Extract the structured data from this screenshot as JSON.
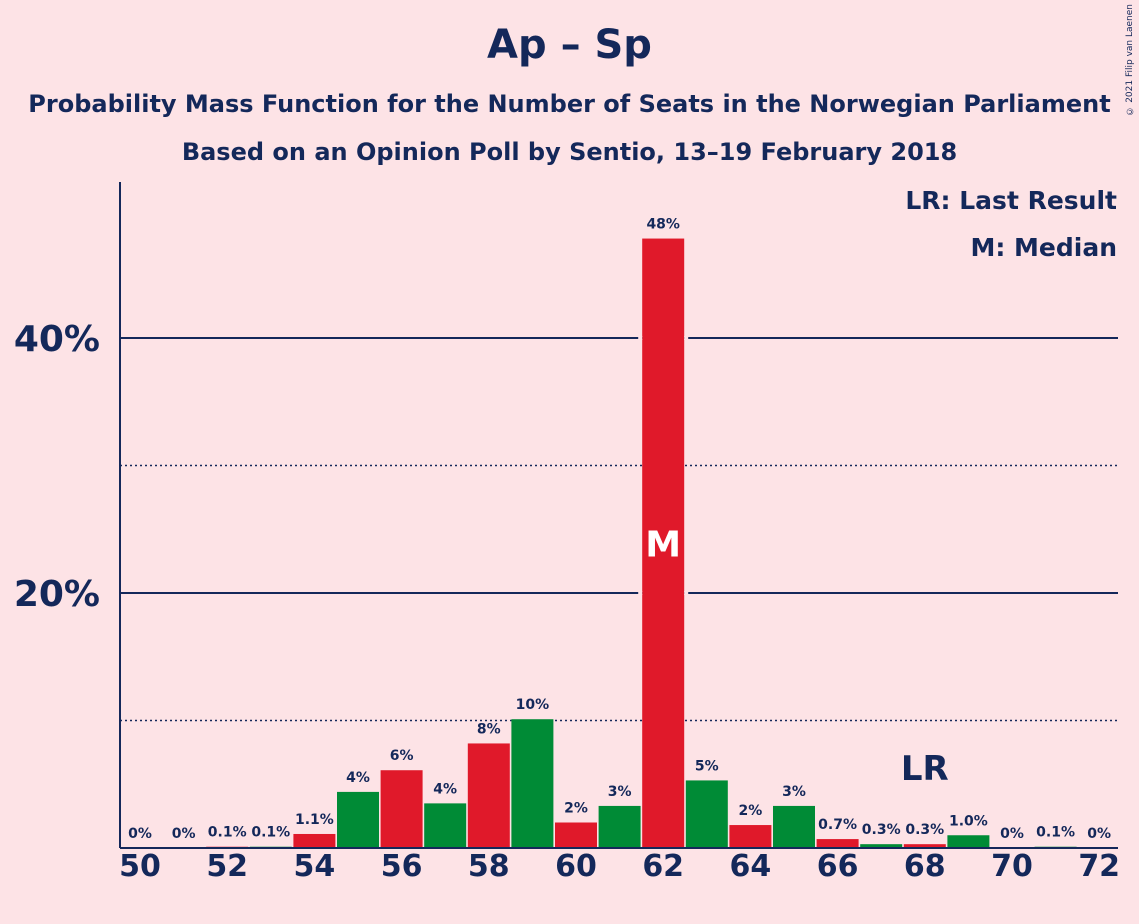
{
  "header": {
    "title": "Ap – Sp",
    "subtitle1": "Probability Mass Function for the Number of Seats in the Norwegian Parliament",
    "subtitle2": "Based on an Opinion Poll by Sentio, 13–19 February 2018"
  },
  "legend": {
    "last_result": "LR: Last Result",
    "median": "M: Median"
  },
  "copyright": "© 2021 Filip van Laenen",
  "colors": {
    "background": "#fde3e6",
    "text": "#14285a",
    "red": "#e0192a",
    "green": "#008b36"
  },
  "chart_data": {
    "type": "bar",
    "title": "Ap – Sp",
    "xlabel": "",
    "ylabel": "",
    "ylim": [
      0,
      52
    ],
    "yticks_major": [
      20,
      40
    ],
    "ytick_labels": [
      "20%",
      "40%"
    ],
    "yticks_minor": [
      10,
      30
    ],
    "categories": [
      50,
      51,
      52,
      53,
      54,
      55,
      56,
      57,
      58,
      59,
      60,
      61,
      62,
      63,
      64,
      65,
      66,
      67,
      68,
      69,
      70,
      71,
      72
    ],
    "xtick_labels": [
      "50",
      "52",
      "54",
      "56",
      "58",
      "60",
      "62",
      "64",
      "66",
      "68",
      "70",
      "72"
    ],
    "values": [
      0,
      0,
      0.1,
      0.1,
      1.1,
      4.4,
      6.1,
      3.5,
      8.2,
      10.1,
      2.0,
      3.3,
      47.8,
      5.3,
      1.8,
      3.3,
      0.7,
      0.3,
      0.3,
      1.0,
      0,
      0.1,
      0
    ],
    "labels": [
      "0%",
      "0%",
      "0.1%",
      "0.1%",
      "1.1%",
      "4%",
      "6%",
      "4%",
      "8%",
      "10%",
      "2%",
      "3%",
      "48%",
      "5%",
      "2%",
      "3%",
      "0.7%",
      "0.3%",
      "0.3%",
      "1.0%",
      "0%",
      "0.1%",
      "0%"
    ],
    "median_seat": 62,
    "median_marker": "M",
    "last_result_seat": 68,
    "last_result_marker": "LR",
    "color_rule": "even seats red, odd seats green"
  }
}
